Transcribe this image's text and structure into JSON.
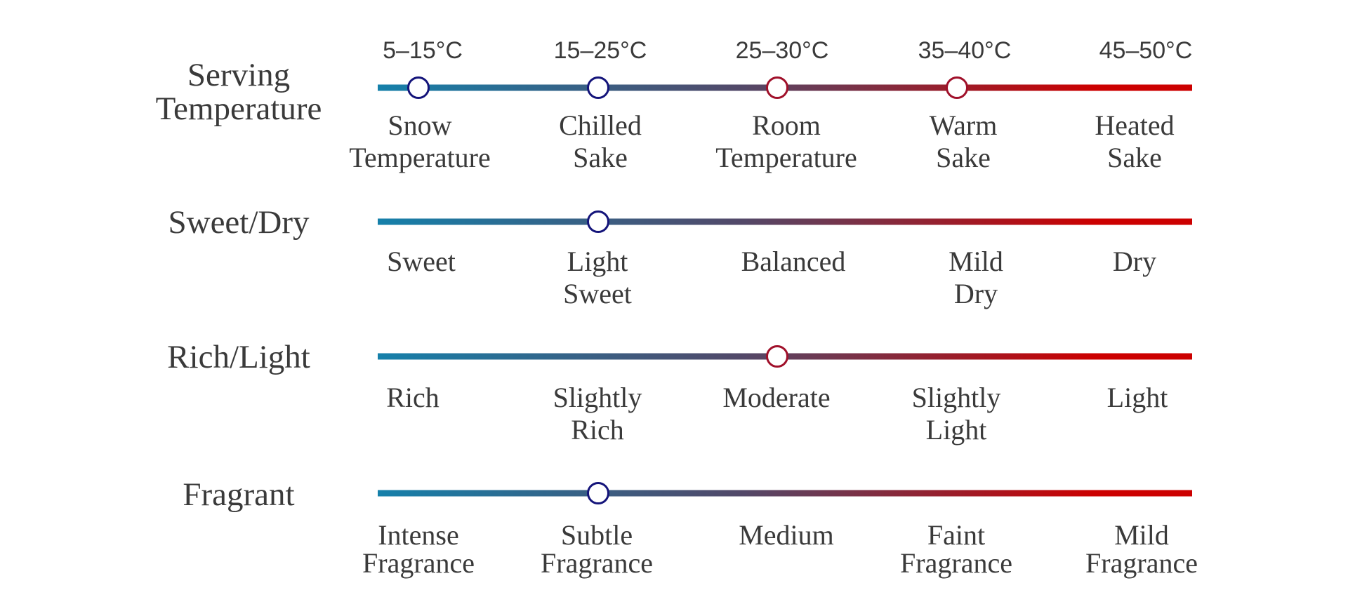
{
  "colors": {
    "line_start": "#1580aa",
    "line_mid": "#534868",
    "line_end": "#cc0000",
    "marker_cool": "#14147a",
    "marker_warm": "#a0102a",
    "text": "#3a3a3a"
  },
  "temperatures": [
    "5–15°C",
    "15–25°C",
    "25–30°C",
    "35–40°C",
    "45–50°C"
  ],
  "rows": [
    {
      "title": [
        "Serving",
        "Temperature"
      ],
      "labels": [
        [
          "Snow",
          "Temperature"
        ],
        [
          "Chilled",
          "Sake"
        ],
        [
          "Room",
          "Temperature"
        ],
        [
          "Warm",
          "Sake"
        ],
        [
          "Heated",
          "Sake"
        ]
      ],
      "markers": [
        0,
        1,
        2,
        3
      ]
    },
    {
      "title": [
        "Sweet/Dry"
      ],
      "labels": [
        [
          "Sweet"
        ],
        [
          "Light",
          "Sweet"
        ],
        [
          "Balanced"
        ],
        [
          "Mild",
          "Dry"
        ],
        [
          "Dry"
        ]
      ],
      "markers": [
        1
      ]
    },
    {
      "title": [
        "Rich/Light"
      ],
      "labels": [
        [
          "Rich"
        ],
        [
          "Slightly",
          "Rich"
        ],
        [
          "Moderate"
        ],
        [
          "Slightly",
          "Light"
        ],
        [
          "Light"
        ]
      ],
      "markers": [
        2
      ]
    },
    {
      "title": [
        "Fragrant"
      ],
      "labels": [
        [
          "Intense",
          "Fragrance"
        ],
        [
          "Subtle",
          "Fragrance"
        ],
        [
          "Medium"
        ],
        [
          "Faint",
          "Fragrance"
        ],
        [
          "Mild",
          "Fragrance"
        ]
      ],
      "markers": [
        1
      ]
    }
  ]
}
